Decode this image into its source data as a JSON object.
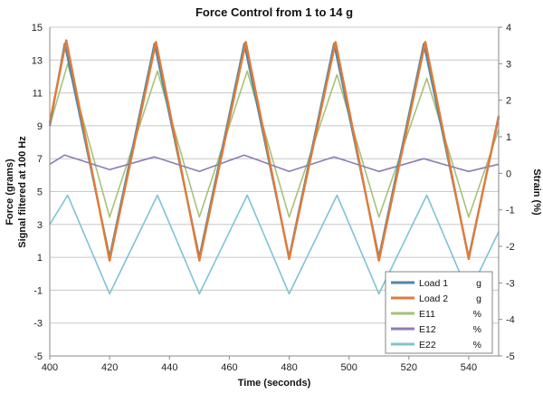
{
  "chart_data": {
    "type": "line",
    "title": "Force Control from 1 to 14 g",
    "xlabel": "Time (seconds)",
    "ylabel": "Force (grams)",
    "ylabel_secondary": "Signal filtered at 100 Hz",
    "y2label": "Strain (%)",
    "xlim": [
      400,
      550
    ],
    "ylim": [
      -5,
      15
    ],
    "y2lim": [
      -5,
      4
    ],
    "xticks": [
      400,
      420,
      440,
      460,
      480,
      500,
      520,
      540
    ],
    "yticks": [
      -5,
      -3,
      -1,
      1,
      3,
      5,
      7,
      9,
      11,
      13,
      15
    ],
    "y2ticks": [
      -5,
      -4,
      -3,
      -2,
      -1,
      0,
      1,
      2,
      3,
      4
    ],
    "grid": "horizontal",
    "legend_position": "bottom-right",
    "series": [
      {
        "name": "Load 1",
        "unit": "g",
        "axis": "left",
        "color": "#4f86a8",
        "x": [
          400,
          405,
          420,
          435,
          450,
          465,
          480,
          495,
          510,
          525,
          540,
          550
        ],
        "y": [
          9,
          14,
          1,
          14,
          1,
          14,
          1,
          14,
          1,
          14,
          1,
          9.5
        ]
      },
      {
        "name": "Load 2",
        "unit": "g",
        "axis": "left",
        "color": "#e07b39",
        "x": [
          400,
          405.5,
          420,
          435.5,
          450,
          465.5,
          480,
          495.5,
          510,
          525.5,
          540,
          550
        ],
        "y": [
          9.2,
          14.2,
          0.8,
          14.1,
          0.8,
          14.1,
          0.9,
          14.1,
          0.8,
          14.1,
          0.9,
          9.6
        ]
      },
      {
        "name": "E11",
        "unit": "%",
        "axis": "right",
        "color": "#a5c27a",
        "x": [
          400,
          406,
          420,
          436,
          450,
          466,
          480,
          496,
          510,
          526,
          540,
          550
        ],
        "y": [
          1.3,
          3.0,
          -1.2,
          2.8,
          -1.2,
          2.8,
          -1.2,
          2.7,
          -1.2,
          2.6,
          -1.2,
          1.2
        ]
      },
      {
        "name": "E12",
        "unit": "%",
        "axis": "right",
        "color": "#8f7bb5",
        "x": [
          400,
          405,
          420,
          435,
          450,
          465,
          480,
          495,
          510,
          525,
          540,
          550
        ],
        "y": [
          0.25,
          0.5,
          0.1,
          0.45,
          0.05,
          0.5,
          0.05,
          0.45,
          0.05,
          0.4,
          0.05,
          0.25
        ]
      },
      {
        "name": "E22",
        "unit": "%",
        "axis": "right",
        "color": "#7ec4d4",
        "x": [
          400,
          406,
          420,
          436,
          450,
          466,
          480,
          496,
          510,
          526,
          540,
          550
        ],
        "y": [
          -1.4,
          -0.6,
          -3.3,
          -0.6,
          -3.3,
          -0.6,
          -3.3,
          -0.6,
          -3.3,
          -0.6,
          -3.3,
          -1.6
        ]
      }
    ]
  }
}
